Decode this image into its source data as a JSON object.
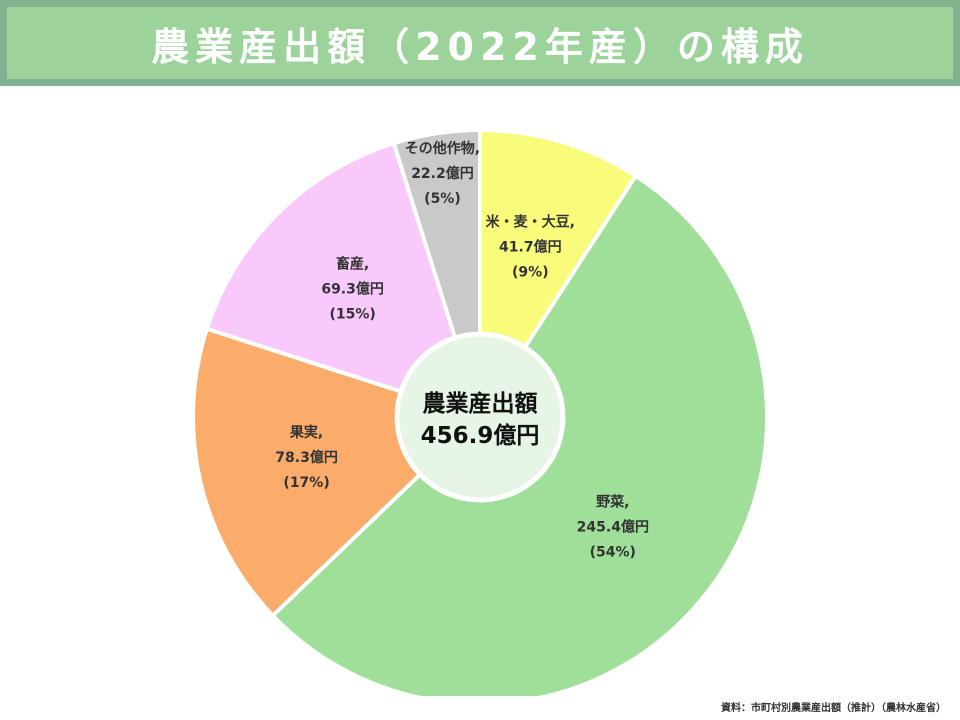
{
  "page": {
    "title": "農業産出額（2022年産）の構成",
    "source": "資料：市町村別農業産出額（推計）（農林水産省）"
  },
  "chart_data": {
    "type": "pie",
    "center_label": {
      "line1": "農業産出額",
      "line2": "456.9億円"
    },
    "total": 456.9,
    "unit": "億円",
    "slices": [
      {
        "name": "米・麦・大豆",
        "value": 41.7,
        "value_label": "41.7億円",
        "percent_label": "(9%)",
        "color": "#f9fb7a"
      },
      {
        "name": "野菜",
        "value": 245.4,
        "value_label": "245.4億円",
        "percent_label": "(54%)",
        "color": "#9fdf99"
      },
      {
        "name": "果実",
        "value": 78.3,
        "value_label": "78.3億円",
        "percent_label": "(17%)",
        "color": "#fbab6a"
      },
      {
        "name": "畜産",
        "value": 69.3,
        "value_label": "69.3億円",
        "percent_label": "(15%)",
        "color": "#f9c9fb"
      },
      {
        "name": "その他作物",
        "value": 22.2,
        "value_label": "22.2億円",
        "percent_label": "(5%)",
        "color": "#c9c9c9"
      }
    ],
    "center_fill": "#e6f5e6"
  }
}
